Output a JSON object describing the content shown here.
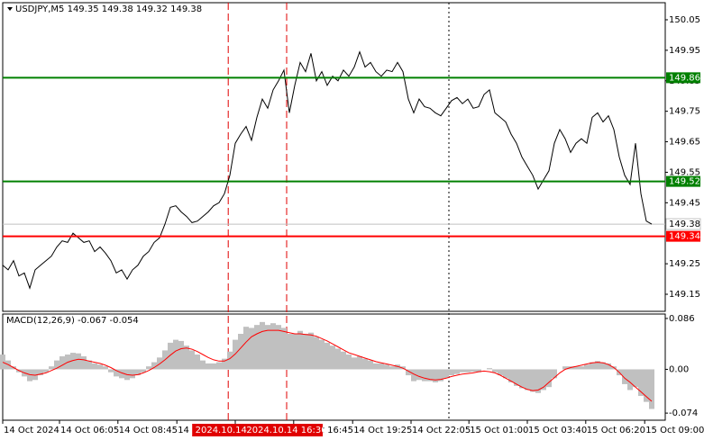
{
  "chart_data": [
    {
      "type": "line",
      "title": "USDJPY,M5  149.35 149.38 149.32 149.38",
      "color": "#000000",
      "values": [
        149.245,
        149.23,
        149.26,
        149.21,
        149.22,
        149.17,
        149.23,
        149.245,
        149.26,
        149.275,
        149.305,
        149.325,
        149.32,
        149.35,
        149.335,
        149.32,
        149.325,
        149.29,
        149.305,
        149.285,
        149.26,
        149.22,
        149.23,
        149.2,
        149.23,
        149.245,
        149.275,
        149.29,
        149.32,
        149.335,
        149.38,
        149.435,
        149.44,
        149.42,
        149.405,
        149.385,
        149.39,
        149.405,
        149.42,
        149.44,
        149.45,
        149.48,
        149.54,
        149.645,
        149.675,
        149.7,
        149.655,
        149.73,
        149.79,
        149.76,
        149.82,
        149.85,
        149.885,
        149.745,
        149.835,
        149.91,
        149.88,
        149.94,
        149.85,
        149.88,
        149.835,
        149.865,
        149.85,
        149.885,
        149.865,
        149.895,
        149.945,
        149.895,
        149.91,
        149.88,
        149.865,
        149.885,
        149.88,
        149.91,
        149.88,
        149.79,
        149.745,
        149.79,
        149.765,
        149.76,
        149.745,
        149.735,
        149.76,
        149.785,
        149.795,
        149.775,
        149.79,
        149.76,
        149.765,
        149.805,
        149.82,
        149.745,
        149.73,
        149.715,
        149.675,
        149.645,
        149.6,
        149.57,
        149.54,
        149.495,
        149.525,
        149.555,
        149.645,
        149.69,
        149.66,
        149.615,
        149.645,
        149.66,
        149.645,
        149.73,
        149.745,
        149.715,
        149.735,
        149.69,
        149.6,
        149.54,
        149.51,
        149.645,
        149.48,
        149.39,
        149.38
      ],
      "xlim": [
        0,
        122.5
      ],
      "ylim": [
        149.094,
        150.106
      ],
      "yticks": [
        150.05,
        149.95,
        149.85,
        149.75,
        149.65,
        149.55,
        149.45,
        149.25,
        149.15
      ],
      "xticks": [
        {
          "value": 0,
          "label": "14 Oct 2024"
        },
        {
          "value": 10.5,
          "label": "14 Oct 06:05"
        },
        {
          "value": 21.3,
          "label": "14 Oct 08:45"
        },
        {
          "value": 32.2,
          "label": "14 Oct 11:25"
        },
        {
          "value": 43,
          "label": "14 Oct 14:05"
        },
        {
          "value": 53.8,
          "label": "14 Oct 16:45"
        },
        {
          "value": 64.7,
          "label": "14 Oct 19:25"
        },
        {
          "value": 75.5,
          "label": "14 Oct 22:05"
        },
        {
          "value": 86.2,
          "label": "15 Oct 01:00"
        },
        {
          "value": 97,
          "label": "15 Oct 03:40"
        },
        {
          "value": 107.8,
          "label": "15 Oct 06:20"
        },
        {
          "value": 118.7,
          "label": "15 Oct 09:00"
        }
      ],
      "levels": [
        {
          "value": 149.86,
          "color": "#008000"
        },
        {
          "value": 149.52,
          "color": "#008000"
        },
        {
          "value": 149.34,
          "color": "#ff0000"
        }
      ],
      "current": {
        "value": 149.38,
        "color": "#c0c0c0"
      },
      "markers": [
        {
          "index": 41.7,
          "label": "2024.10.14 13",
          "color": "#e00000"
        },
        {
          "index": 52.5,
          "label": "2024.10.14 16:30",
          "color": "#e00000"
        }
      ],
      "cursor": {
        "index": 82.5,
        "color": "#000000"
      }
    },
    {
      "type": "macd",
      "title": "MACD(12,26,9) -0.067 -0.054",
      "histogram": {
        "color": "#c0c0c0",
        "values": [
          0.025,
          0.015,
          0.005,
          -0.005,
          -0.012,
          -0.02,
          -0.018,
          -0.01,
          -0.005,
          0.005,
          0.015,
          0.022,
          0.025,
          0.028,
          0.027,
          0.022,
          0.015,
          0.01,
          0.008,
          0.005,
          -0.005,
          -0.012,
          -0.015,
          -0.018,
          -0.015,
          -0.01,
          -0.005,
          0.005,
          0.012,
          0.02,
          0.032,
          0.045,
          0.05,
          0.048,
          0.04,
          0.032,
          0.025,
          0.015,
          0.01,
          0.01,
          0.012,
          0.018,
          0.03,
          0.05,
          0.06,
          0.072,
          0.07,
          0.075,
          0.08,
          0.075,
          0.078,
          0.075,
          0.07,
          0.06,
          0.06,
          0.065,
          0.06,
          0.062,
          0.055,
          0.05,
          0.045,
          0.04,
          0.035,
          0.03,
          0.025,
          0.02,
          0.022,
          0.018,
          0.015,
          0.01,
          0.01,
          0.008,
          0.005,
          0.008,
          0.005,
          -0.01,
          -0.02,
          -0.018,
          -0.02,
          -0.02,
          -0.022,
          -0.02,
          -0.015,
          -0.01,
          -0.008,
          -0.005,
          -0.005,
          -0.004,
          -0.005,
          0,
          0.002,
          -0.005,
          -0.01,
          -0.015,
          -0.022,
          -0.028,
          -0.032,
          -0.035,
          -0.038,
          -0.04,
          -0.035,
          -0.03,
          -0.015,
          0,
          0.005,
          0.005,
          0.005,
          0.005,
          0.008,
          0.012,
          0.014,
          0.012,
          0.01,
          0.005,
          -0.01,
          -0.025,
          -0.035,
          -0.03,
          -0.045,
          -0.055,
          -0.067
        ]
      },
      "signal": {
        "color": "#ff0000",
        "values": [
          0.012,
          0.008,
          0.003,
          -0.002,
          -0.006,
          -0.009,
          -0.01,
          -0.008,
          -0.006,
          -0.002,
          0.002,
          0.007,
          0.012,
          0.015,
          0.017,
          0.016,
          0.014,
          0.012,
          0.01,
          0.007,
          0.003,
          -0.002,
          -0.006,
          -0.009,
          -0.01,
          -0.009,
          -0.006,
          -0.002,
          0.003,
          0.009,
          0.016,
          0.024,
          0.031,
          0.035,
          0.036,
          0.034,
          0.03,
          0.025,
          0.02,
          0.016,
          0.014,
          0.014,
          0.018,
          0.026,
          0.036,
          0.046,
          0.055,
          0.06,
          0.064,
          0.066,
          0.066,
          0.066,
          0.064,
          0.062,
          0.06,
          0.06,
          0.059,
          0.058,
          0.056,
          0.052,
          0.048,
          0.043,
          0.038,
          0.033,
          0.028,
          0.025,
          0.022,
          0.019,
          0.016,
          0.013,
          0.011,
          0.009,
          0.007,
          0.005,
          0.002,
          -0.003,
          -0.008,
          -0.012,
          -0.015,
          -0.017,
          -0.018,
          -0.017,
          -0.015,
          -0.012,
          -0.01,
          -0.008,
          -0.007,
          -0.006,
          -0.004,
          -0.003,
          -0.004,
          -0.006,
          -0.01,
          -0.015,
          -0.02,
          -0.025,
          -0.03,
          -0.034,
          -0.036,
          -0.035,
          -0.03,
          -0.022,
          -0.014,
          -0.006,
          0,
          0.003,
          0.005,
          0.007,
          0.009,
          0.011,
          0.012,
          0.011,
          0.008,
          0.003,
          -0.005,
          -0.015,
          -0.022,
          -0.03,
          -0.038,
          -0.046,
          -0.054
        ]
      },
      "ylim": [
        -0.086,
        0.0935
      ],
      "yticks": [
        0.086,
        {
          "value": 0,
          "label": "0.00"
        },
        -0.074
      ]
    }
  ]
}
